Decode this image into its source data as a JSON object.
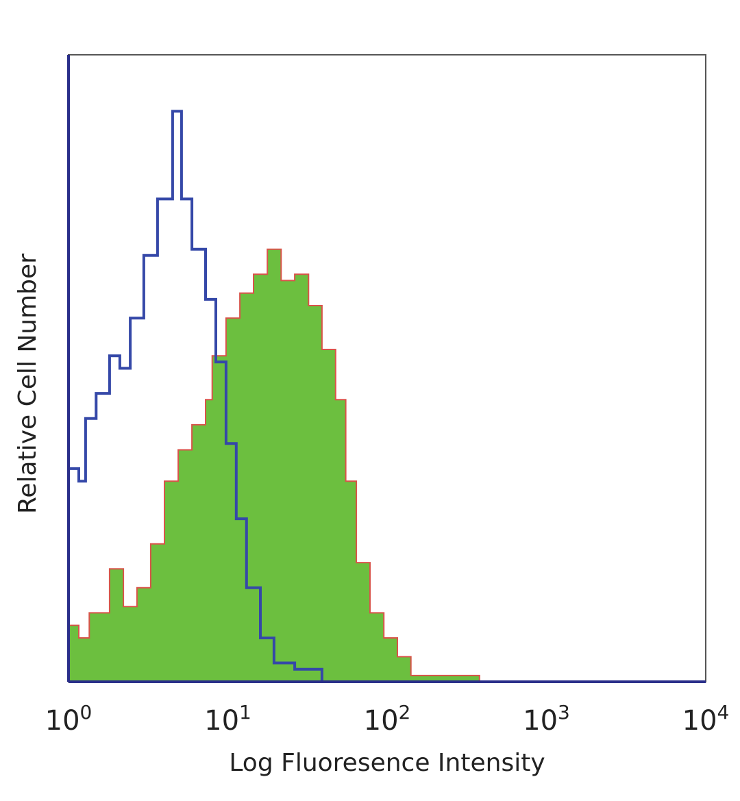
{
  "chart_data": {
    "type": "area",
    "title": "",
    "xlabel": "Log Fluoresence Intensity",
    "ylabel": "Relative Cell Number",
    "xscale": "log",
    "xlim": [
      1,
      10000
    ],
    "ylim": [
      0,
      100
    ],
    "grid": false,
    "legend": "none",
    "x_ticks": [
      {
        "base": "10",
        "exp": "0",
        "value": 1
      },
      {
        "base": "10",
        "exp": "1",
        "value": 10
      },
      {
        "base": "10",
        "exp": "2",
        "value": 100
      },
      {
        "base": "10",
        "exp": "3",
        "value": 1000
      },
      {
        "base": "10",
        "exp": "4",
        "value": 10000
      }
    ],
    "series": [
      {
        "style": "line",
        "color": "#3548a8",
        "x": [
          1,
          1.16,
          1.28,
          1.49,
          1.81,
          2.1,
          2.44,
          2.97,
          3.62,
          4.5,
          5.12,
          5.95,
          7.25,
          8.41,
          9.75,
          11.3,
          13.1,
          16.0,
          19.5,
          26.3,
          39.0
        ],
        "y": [
          34,
          32,
          42,
          46,
          52,
          50,
          58,
          68,
          77,
          91,
          77,
          69,
          61,
          51,
          38,
          26,
          15,
          7,
          3,
          2,
          0
        ]
      },
      {
        "style": "filled",
        "color": "#6cbf3f",
        "edge_color": "#d9534a",
        "x": [
          1,
          1.16,
          1.35,
          1.81,
          2.21,
          2.69,
          3.28,
          4.0,
          4.88,
          5.95,
          7.25,
          7.98,
          9.75,
          11.9,
          14.5,
          17.7,
          21.6,
          26.3,
          32.1,
          39.0,
          47.5,
          55.0,
          64.1,
          78.1,
          95.4,
          116,
          141,
          210,
          380
        ],
        "y": [
          9,
          7,
          11,
          18,
          12,
          15,
          22,
          32,
          37,
          41,
          45,
          52,
          58,
          62,
          65,
          69,
          64,
          65,
          60,
          53,
          45,
          32,
          19,
          11,
          7,
          4,
          1,
          1,
          0
        ]
      }
    ],
    "axis_color": "#2a2f8a"
  }
}
